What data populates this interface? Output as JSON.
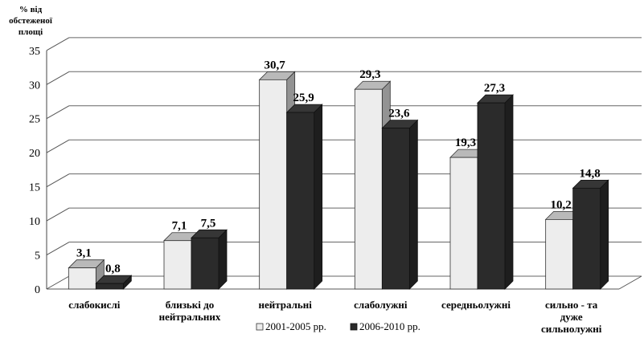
{
  "chart_data": {
    "type": "bar",
    "ylabel": "% від обстеженої площі",
    "ylabel_lines": [
      "% від",
      "обстеженої",
      "площі"
    ],
    "ylim": [
      0,
      35
    ],
    "yticks": [
      0,
      5,
      10,
      15,
      20,
      25,
      30,
      35
    ],
    "grid": true,
    "legend_position": "bottom",
    "categories": [
      "слабокислі",
      "близькі до нейтральних",
      "нейтральні",
      "слаболужні",
      "середньолужні",
      "сильно - та дуже сильнолужні"
    ],
    "category_label_lines": [
      [
        "слабокислі"
      ],
      [
        "близькі до",
        "нейтральних"
      ],
      [
        "нейтральні"
      ],
      [
        "слаболужні"
      ],
      [
        "середньолужні"
      ],
      [
        "сильно - та",
        "дуже",
        "сильнолужні"
      ]
    ],
    "series": [
      {
        "name": "2001-2005 рр.",
        "values": [
          3.1,
          7.1,
          30.7,
          29.3,
          19.3,
          10.2
        ],
        "labels": [
          "3,1",
          "7,1",
          "30,7",
          "29,3",
          "19,3",
          "10,2"
        ],
        "color": "#ededed"
      },
      {
        "name": "2006-2010 рр.",
        "values": [
          0.8,
          7.5,
          25.9,
          23.6,
          27.3,
          14.8
        ],
        "labels": [
          "0,8",
          "7,5",
          "25,9",
          "23,6",
          "27,3",
          "14,8"
        ],
        "color": "#2b2b2b"
      }
    ]
  }
}
